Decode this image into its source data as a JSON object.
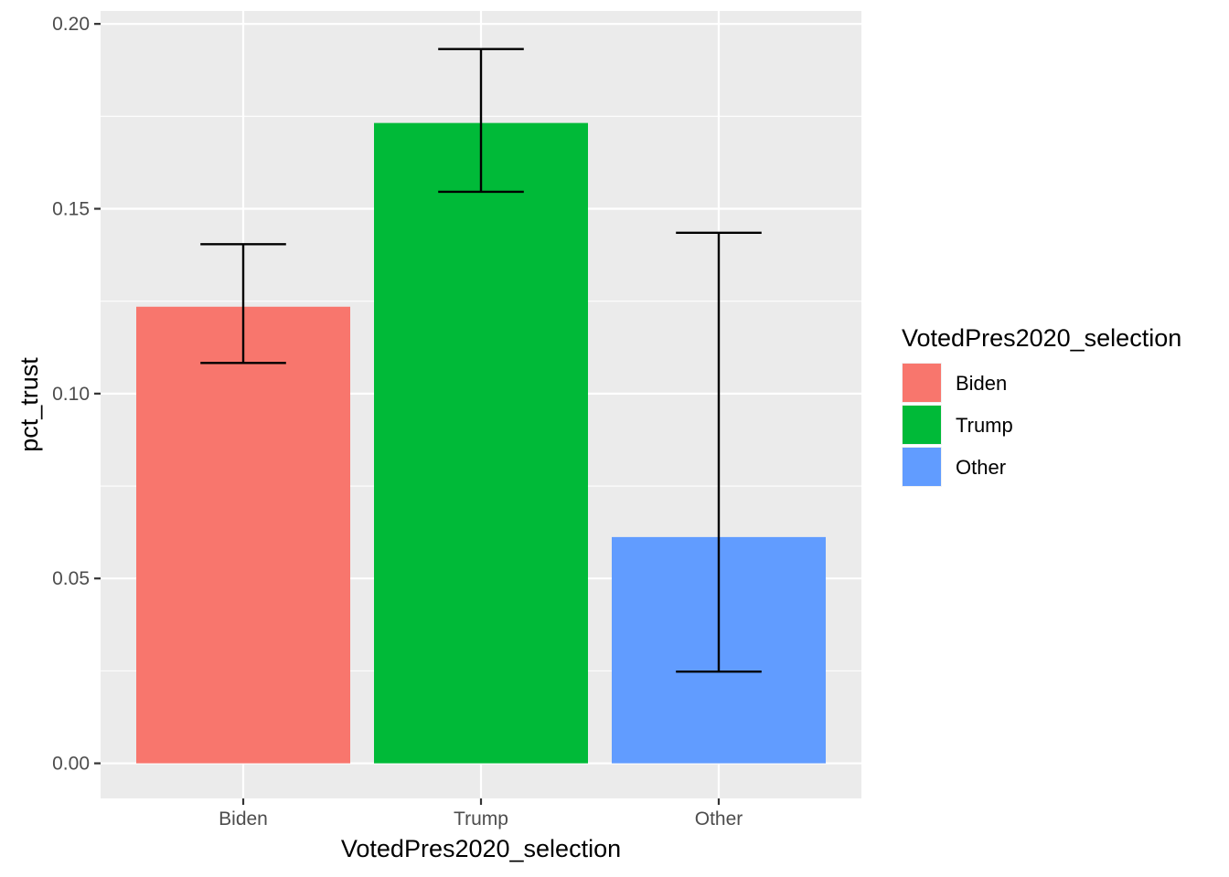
{
  "chart_data": {
    "type": "bar",
    "categories": [
      "Biden",
      "Trump",
      "Other"
    ],
    "values": [
      0.1235,
      0.1732,
      0.0612
    ],
    "error_bars": [
      {
        "low": 0.1083,
        "high": 0.1404
      },
      {
        "low": 0.1546,
        "high": 0.1932
      },
      {
        "low": 0.0248,
        "high": 0.1435
      }
    ],
    "colors": [
      "#F8766D",
      "#00BA38",
      "#619CFF"
    ],
    "xlabel": "VotedPres2020_selection",
    "ylabel": "pct_trust",
    "ylim": [
      -0.0095,
      0.2035
    ],
    "yticks": [
      0.0,
      0.05,
      0.1,
      0.15,
      0.2
    ],
    "ytick_labels": [
      "0.00",
      "0.05",
      "0.10",
      "0.15",
      "0.20"
    ],
    "grid": true,
    "legend": {
      "title": "VotedPres2020_selection",
      "placement": "right",
      "entries": [
        "Biden",
        "Trump",
        "Other"
      ]
    }
  }
}
